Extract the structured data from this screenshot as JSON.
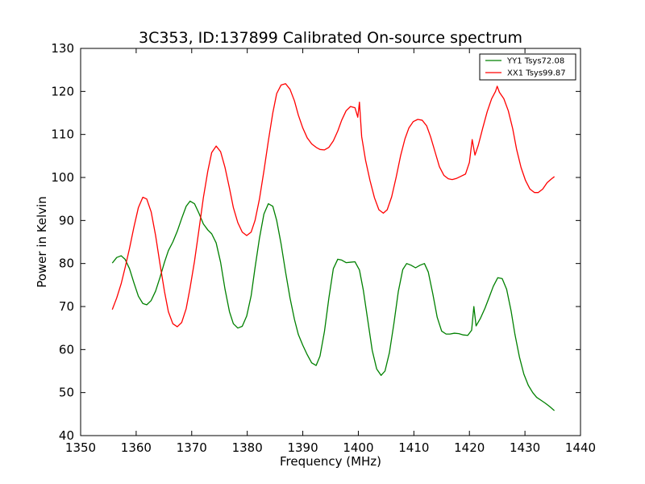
{
  "chart_data": {
    "type": "line",
    "title": "3C353, ID:137899 Calibrated On-source spectrum",
    "xlabel": "Frequency (MHz)",
    "ylabel": "Power in Kelvin",
    "xlim": [
      1350,
      1440
    ],
    "ylim": [
      40,
      130
    ],
    "xticks": [
      "1350",
      "1360",
      "1370",
      "1380",
      "1390",
      "1400",
      "1410",
      "1420",
      "1430",
      "1440"
    ],
    "yticks": [
      "40",
      "50",
      "60",
      "70",
      "80",
      "90",
      "100",
      "110",
      "120",
      "130"
    ],
    "grid": false,
    "legend_position": "top-right",
    "series": [
      {
        "name": "YY1 Tsys72.08",
        "color": "#008000",
        "points": [
          [
            1355.7,
            80.1
          ],
          [
            1356.5,
            81.4
          ],
          [
            1357.3,
            81.8
          ],
          [
            1358.0,
            81.0
          ],
          [
            1358.8,
            78.8
          ],
          [
            1359.6,
            75.5
          ],
          [
            1360.4,
            72.4
          ],
          [
            1361.2,
            70.7
          ],
          [
            1361.9,
            70.4
          ],
          [
            1362.7,
            71.4
          ],
          [
            1363.5,
            73.6
          ],
          [
            1364.3,
            76.8
          ],
          [
            1365.1,
            80.3
          ],
          [
            1365.8,
            83.0
          ],
          [
            1366.6,
            85.0
          ],
          [
            1367.4,
            87.5
          ],
          [
            1368.2,
            90.5
          ],
          [
            1369.0,
            93.3
          ],
          [
            1369.7,
            94.5
          ],
          [
            1370.5,
            93.9
          ],
          [
            1371.3,
            91.7
          ],
          [
            1372.1,
            89.2
          ],
          [
            1372.9,
            87.8
          ],
          [
            1373.6,
            86.9
          ],
          [
            1374.4,
            84.8
          ],
          [
            1375.2,
            80.3
          ],
          [
            1376.0,
            74.0
          ],
          [
            1376.8,
            68.8
          ],
          [
            1377.5,
            66.0
          ],
          [
            1378.3,
            65.0
          ],
          [
            1379.1,
            65.4
          ],
          [
            1379.9,
            67.8
          ],
          [
            1380.7,
            72.5
          ],
          [
            1381.4,
            79.0
          ],
          [
            1382.2,
            85.9
          ],
          [
            1383.0,
            91.5
          ],
          [
            1383.8,
            93.9
          ],
          [
            1384.6,
            93.3
          ],
          [
            1385.3,
            90.0
          ],
          [
            1386.1,
            84.5
          ],
          [
            1386.9,
            78.0
          ],
          [
            1387.7,
            72.0
          ],
          [
            1388.5,
            67.0
          ],
          [
            1389.2,
            63.5
          ],
          [
            1390.0,
            61.0
          ],
          [
            1390.8,
            58.8
          ],
          [
            1391.6,
            56.9
          ],
          [
            1392.4,
            56.3
          ],
          [
            1393.1,
            58.5
          ],
          [
            1393.9,
            64.2
          ],
          [
            1394.7,
            72.0
          ],
          [
            1395.5,
            78.8
          ],
          [
            1396.3,
            81.0
          ],
          [
            1397.0,
            80.8
          ],
          [
            1397.8,
            80.2
          ],
          [
            1398.6,
            80.3
          ],
          [
            1399.4,
            80.4
          ],
          [
            1400.2,
            78.5
          ],
          [
            1400.9,
            73.8
          ],
          [
            1401.7,
            66.8
          ],
          [
            1402.5,
            59.8
          ],
          [
            1403.3,
            55.5
          ],
          [
            1404.1,
            54.0
          ],
          [
            1404.8,
            55.0
          ],
          [
            1405.6,
            59.3
          ],
          [
            1406.4,
            66.0
          ],
          [
            1407.2,
            73.5
          ],
          [
            1408.0,
            78.6
          ],
          [
            1408.7,
            80.0
          ],
          [
            1409.5,
            79.6
          ],
          [
            1410.3,
            79.0
          ],
          [
            1411.1,
            79.6
          ],
          [
            1411.9,
            80.0
          ],
          [
            1412.6,
            78.0
          ],
          [
            1413.4,
            73.0
          ],
          [
            1414.2,
            67.5
          ],
          [
            1415.0,
            64.3
          ],
          [
            1415.8,
            63.6
          ],
          [
            1416.5,
            63.6
          ],
          [
            1417.3,
            63.8
          ],
          [
            1418.1,
            63.7
          ],
          [
            1418.9,
            63.4
          ],
          [
            1419.7,
            63.3
          ],
          [
            1420.4,
            64.5
          ],
          [
            1420.8,
            70.0
          ],
          [
            1421.2,
            65.5
          ],
          [
            1422.0,
            67.3
          ],
          [
            1422.8,
            69.6
          ],
          [
            1423.6,
            72.3
          ],
          [
            1424.3,
            74.7
          ],
          [
            1425.1,
            76.7
          ],
          [
            1425.9,
            76.5
          ],
          [
            1426.7,
            74.0
          ],
          [
            1427.5,
            69.0
          ],
          [
            1428.2,
            63.5
          ],
          [
            1429.0,
            58.3
          ],
          [
            1429.8,
            54.3
          ],
          [
            1430.6,
            51.7
          ],
          [
            1431.4,
            50.0
          ],
          [
            1432.1,
            48.9
          ],
          [
            1432.9,
            48.2
          ],
          [
            1433.7,
            47.5
          ],
          [
            1434.5,
            46.7
          ],
          [
            1435.3,
            45.8
          ]
        ]
      },
      {
        "name": "XX1 Tsys99.87",
        "color": "#ff0000",
        "points": [
          [
            1355.7,
            69.3
          ],
          [
            1356.5,
            72.0
          ],
          [
            1357.3,
            75.3
          ],
          [
            1358.0,
            79.0
          ],
          [
            1358.8,
            83.5
          ],
          [
            1359.6,
            88.5
          ],
          [
            1360.4,
            93.0
          ],
          [
            1361.2,
            95.4
          ],
          [
            1361.9,
            95.0
          ],
          [
            1362.7,
            92.0
          ],
          [
            1363.5,
            86.5
          ],
          [
            1364.3,
            79.8
          ],
          [
            1365.1,
            73.5
          ],
          [
            1365.8,
            68.8
          ],
          [
            1366.6,
            66.0
          ],
          [
            1367.4,
            65.3
          ],
          [
            1368.2,
            66.3
          ],
          [
            1369.0,
            69.5
          ],
          [
            1369.7,
            74.3
          ],
          [
            1370.5,
            80.5
          ],
          [
            1371.3,
            87.8
          ],
          [
            1372.1,
            95.3
          ],
          [
            1372.9,
            101.5
          ],
          [
            1373.6,
            105.8
          ],
          [
            1374.4,
            107.3
          ],
          [
            1375.2,
            106.0
          ],
          [
            1376.0,
            102.3
          ],
          [
            1376.8,
            97.5
          ],
          [
            1377.5,
            93.0
          ],
          [
            1378.3,
            89.5
          ],
          [
            1379.1,
            87.3
          ],
          [
            1379.9,
            86.5
          ],
          [
            1380.7,
            87.3
          ],
          [
            1381.4,
            90.0
          ],
          [
            1382.2,
            95.0
          ],
          [
            1383.0,
            101.5
          ],
          [
            1383.8,
            108.5
          ],
          [
            1384.6,
            115.0
          ],
          [
            1385.3,
            119.5
          ],
          [
            1386.1,
            121.5
          ],
          [
            1386.9,
            121.8
          ],
          [
            1387.7,
            120.5
          ],
          [
            1388.5,
            117.8
          ],
          [
            1389.2,
            114.5
          ],
          [
            1390.0,
            111.5
          ],
          [
            1390.8,
            109.2
          ],
          [
            1391.6,
            107.8
          ],
          [
            1392.4,
            107.0
          ],
          [
            1393.1,
            106.5
          ],
          [
            1393.9,
            106.4
          ],
          [
            1394.7,
            107.0
          ],
          [
            1395.5,
            108.5
          ],
          [
            1396.3,
            110.8
          ],
          [
            1397.0,
            113.3
          ],
          [
            1397.8,
            115.5
          ],
          [
            1398.6,
            116.5
          ],
          [
            1399.4,
            116.2
          ],
          [
            1399.9,
            114.0
          ],
          [
            1400.2,
            117.5
          ],
          [
            1400.6,
            109.5
          ],
          [
            1401.3,
            104.0
          ],
          [
            1402.1,
            99.3
          ],
          [
            1402.9,
            95.3
          ],
          [
            1403.7,
            92.5
          ],
          [
            1404.5,
            91.7
          ],
          [
            1405.2,
            92.5
          ],
          [
            1406.0,
            95.5
          ],
          [
            1406.8,
            100.0
          ],
          [
            1407.6,
            105.0
          ],
          [
            1408.4,
            109.0
          ],
          [
            1409.1,
            111.5
          ],
          [
            1409.9,
            113.0
          ],
          [
            1410.7,
            113.5
          ],
          [
            1411.5,
            113.3
          ],
          [
            1412.3,
            112.0
          ],
          [
            1413.0,
            109.5
          ],
          [
            1413.8,
            106.0
          ],
          [
            1414.6,
            102.5
          ],
          [
            1415.4,
            100.5
          ],
          [
            1416.2,
            99.7
          ],
          [
            1416.9,
            99.5
          ],
          [
            1417.7,
            99.8
          ],
          [
            1418.5,
            100.3
          ],
          [
            1419.3,
            100.8
          ],
          [
            1420.0,
            103.5
          ],
          [
            1420.5,
            108.8
          ],
          [
            1421.0,
            105.2
          ],
          [
            1421.6,
            107.5
          ],
          [
            1422.4,
            111.5
          ],
          [
            1423.2,
            115.3
          ],
          [
            1424.0,
            118.3
          ],
          [
            1424.7,
            120.0
          ],
          [
            1425.0,
            121.2
          ],
          [
            1425.4,
            119.8
          ],
          [
            1426.2,
            118.3
          ],
          [
            1427.0,
            115.5
          ],
          [
            1427.8,
            111.3
          ],
          [
            1428.5,
            106.5
          ],
          [
            1429.3,
            102.3
          ],
          [
            1430.1,
            99.3
          ],
          [
            1430.9,
            97.3
          ],
          [
            1431.7,
            96.5
          ],
          [
            1432.4,
            96.5
          ],
          [
            1433.2,
            97.3
          ],
          [
            1434.0,
            98.8
          ],
          [
            1434.8,
            99.7
          ],
          [
            1435.3,
            100.2
          ]
        ]
      }
    ]
  }
}
